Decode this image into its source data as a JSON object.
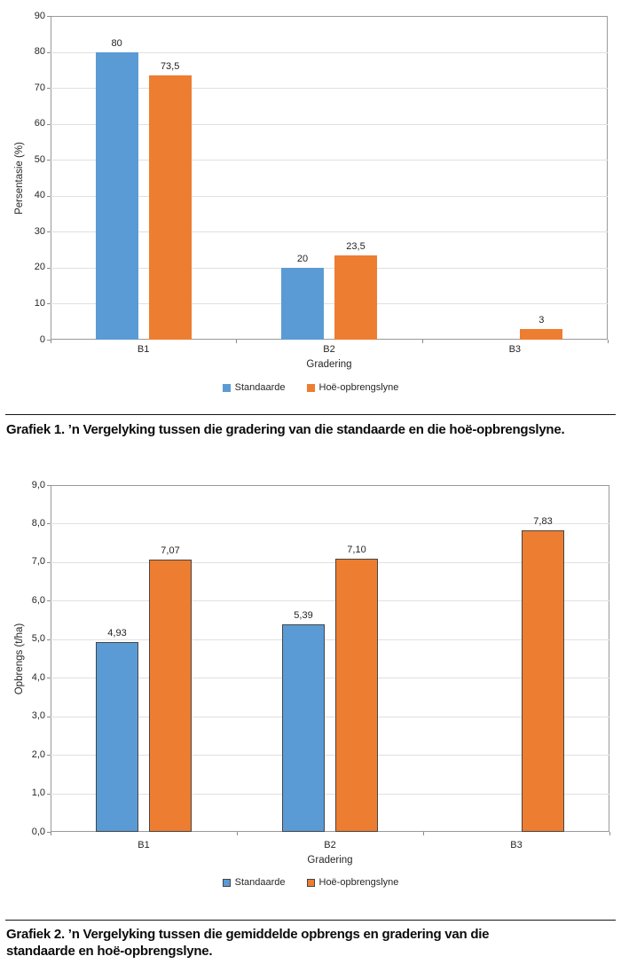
{
  "colors": {
    "standaarde": "#5B9BD5",
    "hoe_opbrengslyne": "#ED7D31",
    "bar_outline": "#454545",
    "gridline": "#e0e0e0",
    "plot_border": "#9a9a9a",
    "text": "#262626"
  },
  "chart_data": [
    {
      "type": "bar",
      "categories": [
        "B1",
        "B2",
        "B3"
      ],
      "series": [
        {
          "name": "Standaarde",
          "color": "#5B9BD5",
          "values": [
            80,
            20,
            null
          ],
          "value_labels": [
            "80",
            "20",
            null
          ]
        },
        {
          "name": "Hoë-opbrengslyne",
          "color": "#ED7D31",
          "values": [
            73.5,
            23.5,
            3
          ],
          "value_labels": [
            "73,5",
            "23,5",
            "3"
          ]
        }
      ],
      "title": "",
      "xlabel": "Gradering",
      "ylabel": "Persentasie (%)",
      "ylim": [
        0,
        90
      ],
      "yticks": [
        90,
        80,
        70,
        60,
        50,
        40,
        30,
        20,
        10,
        0
      ],
      "ytick_labels": [
        "90",
        "80",
        "70",
        "60",
        "50",
        "40",
        "30",
        "20",
        "10",
        "0"
      ],
      "grid": true,
      "legend_position": "bottom",
      "bar_outline": false
    },
    {
      "type": "bar",
      "categories": [
        "B1",
        "B2",
        "B3"
      ],
      "series": [
        {
          "name": "Standaarde",
          "color": "#5B9BD5",
          "values": [
            4.93,
            5.39,
            null
          ],
          "value_labels": [
            "4,93",
            "5,39",
            null
          ]
        },
        {
          "name": "Hoë-opbrengslyne",
          "color": "#ED7D31",
          "values": [
            7.07,
            7.1,
            7.83
          ],
          "value_labels": [
            "7,07",
            "7,10",
            "7,83"
          ]
        }
      ],
      "title": "",
      "xlabel": "Gradering",
      "ylabel": "Opbrengs (t/ha)",
      "ylim": [
        0,
        9
      ],
      "yticks": [
        9,
        8,
        7,
        6,
        5,
        4,
        3,
        2,
        1,
        0
      ],
      "ytick_labels": [
        "9,0",
        "8,0",
        "7,0",
        "6,0",
        "5,0",
        "4,0",
        "3,0",
        "2,0",
        "1,0",
        "0,0"
      ],
      "grid": true,
      "legend_position": "bottom",
      "bar_outline": true
    }
  ],
  "figures": [
    {
      "name": "grafiek-1",
      "caption_lines": [
        "Grafiek 1. ’n Vergelyking tussen die gradering van die standaarde en die hoë-opbrengslyne."
      ]
    },
    {
      "name": "grafiek-2",
      "caption_lines": [
        "Grafiek 2. ’n Vergelyking tussen die gemiddelde opbrengs en gradering van die",
        "standaarde en hoë-opbrengslyne."
      ]
    }
  ]
}
